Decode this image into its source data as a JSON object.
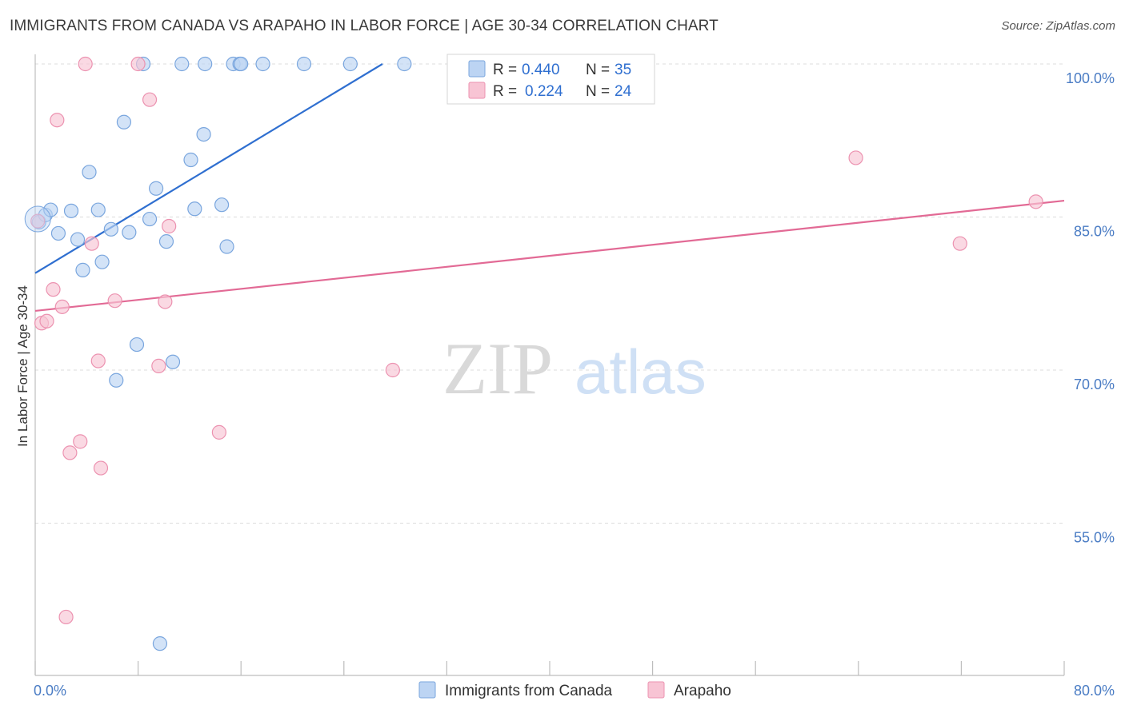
{
  "title": "IMMIGRANTS FROM CANADA VS ARAPAHO IN LABOR FORCE | AGE 30-34 CORRELATION CHART",
  "source": "Source: ZipAtlas.com",
  "watermark": {
    "zip": "ZIP",
    "atlas": "atlas"
  },
  "colors": {
    "blue_fill": "#bcd4f3",
    "blue_stroke": "#7aa6de",
    "blue_line": "#2f6fd0",
    "pink_fill": "#f8c4d4",
    "pink_stroke": "#ec92b0",
    "pink_line": "#e26a95",
    "tick_text": "#4a7cc4",
    "grid": "#dcdcdc"
  },
  "legend": {
    "rows": [
      {
        "r_label": "R = ",
        "r_value": "0.440",
        "n_label": "N = ",
        "n_value": "35"
      },
      {
        "r_label": "R = ",
        "r_value": "0.224",
        "n_label": "N = ",
        "n_value": "24"
      }
    ]
  },
  "chart_data": {
    "type": "scatter",
    "title": "IMMIGRANTS FROM CANADA VS ARAPAHO IN LABOR FORCE | AGE 30-34 CORRELATION CHART",
    "xlabel": "",
    "ylabel": "In Labor Force | Age 30-34",
    "xlim": [
      0,
      80
    ],
    "ylim": [
      42,
      103
    ],
    "x_tick_labels": [
      "0.0%",
      "80.0%"
    ],
    "y_ticks": [
      55,
      70,
      85,
      100
    ],
    "y_tick_labels": [
      "55.0%",
      "70.0%",
      "85.0%",
      "100.0%"
    ],
    "series": [
      {
        "name": "Immigrants from Canada",
        "color": "blue",
        "points": [
          [
            0.3,
            84.5
          ],
          [
            0.8,
            85.2
          ],
          [
            1.2,
            85.7
          ],
          [
            1.8,
            83.4
          ],
          [
            2.8,
            85.6
          ],
          [
            3.3,
            82.8
          ],
          [
            3.7,
            79.8
          ],
          [
            4.2,
            89.4
          ],
          [
            4.9,
            85.7
          ],
          [
            5.2,
            80.6
          ],
          [
            5.9,
            83.8
          ],
          [
            6.3,
            69.0
          ],
          [
            6.9,
            94.3
          ],
          [
            7.3,
            83.5
          ],
          [
            7.9,
            72.5
          ],
          [
            8.4,
            100.0
          ],
          [
            8.9,
            84.8
          ],
          [
            9.4,
            87.8
          ],
          [
            9.7,
            43.2
          ],
          [
            10.2,
            82.6
          ],
          [
            10.7,
            70.8
          ],
          [
            12.1,
            90.6
          ],
          [
            12.4,
            85.8
          ],
          [
            13.1,
            93.1
          ],
          [
            11.4,
            100.0
          ],
          [
            13.2,
            100.0
          ],
          [
            14.5,
            86.2
          ],
          [
            14.9,
            82.1
          ],
          [
            15.4,
            100.0
          ],
          [
            15.9,
            100.0
          ],
          [
            17.7,
            100.0
          ],
          [
            20.9,
            100.0
          ],
          [
            24.5,
            100.0
          ],
          [
            28.7,
            100.0
          ],
          [
            16.0,
            100.0
          ]
        ],
        "trend": {
          "x0": 0,
          "y0": 79.5,
          "x1": 27.0,
          "y1": 100.0
        },
        "legend_r": "0.440",
        "legend_n": "35"
      },
      {
        "name": "Arapaho",
        "color": "pink",
        "points": [
          [
            0.5,
            74.6
          ],
          [
            0.9,
            74.8
          ],
          [
            1.4,
            77.9
          ],
          [
            1.7,
            94.5
          ],
          [
            2.1,
            76.2
          ],
          [
            2.4,
            45.8
          ],
          [
            2.7,
            61.9
          ],
          [
            3.5,
            63.0
          ],
          [
            3.9,
            100.0
          ],
          [
            4.4,
            82.4
          ],
          [
            4.9,
            70.9
          ],
          [
            5.1,
            60.4
          ],
          [
            6.2,
            76.8
          ],
          [
            8.0,
            100.0
          ],
          [
            8.9,
            96.5
          ],
          [
            9.6,
            70.4
          ],
          [
            10.1,
            76.7
          ],
          [
            10.4,
            84.1
          ],
          [
            14.3,
            63.9
          ],
          [
            27.8,
            70.0
          ],
          [
            63.8,
            90.8
          ],
          [
            71.9,
            82.4
          ],
          [
            77.8,
            86.5
          ],
          [
            0.2,
            84.6
          ]
        ],
        "trend": {
          "x0": 0,
          "y0": 75.8,
          "x1": 80,
          "y1": 86.6
        },
        "legend_r": "0.224",
        "legend_n": "24"
      }
    ]
  }
}
